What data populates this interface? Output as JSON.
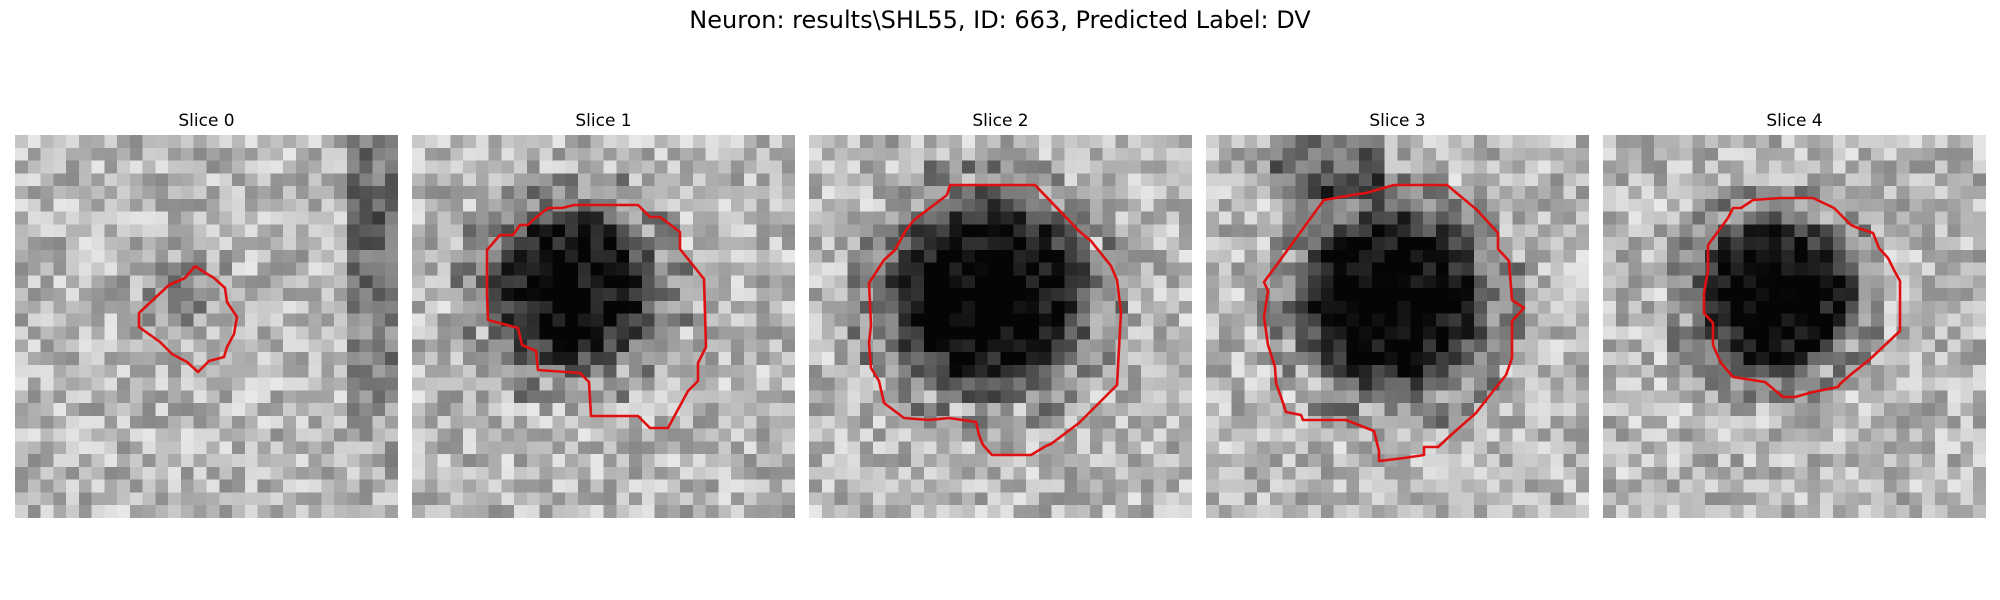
{
  "figure": {
    "title": "Neuron: results\\SHL55, ID: 663, Predicted Label: DV"
  },
  "colors": {
    "contour": "#e01010",
    "background": "#ffffff"
  },
  "panels": [
    {
      "title": "Slice 0"
    },
    {
      "title": "Slice 1"
    },
    {
      "title": "Slice 2"
    },
    {
      "title": "Slice 3"
    },
    {
      "title": "Slice 4"
    }
  ]
}
